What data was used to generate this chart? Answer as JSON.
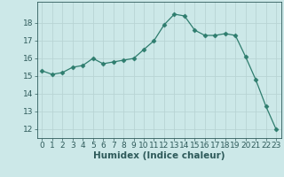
{
  "x": [
    0,
    1,
    2,
    3,
    4,
    5,
    6,
    7,
    8,
    9,
    10,
    11,
    12,
    13,
    14,
    15,
    16,
    17,
    18,
    19,
    20,
    21,
    22,
    23
  ],
  "y": [
    15.3,
    15.1,
    15.2,
    15.5,
    15.6,
    16.0,
    15.7,
    15.8,
    15.9,
    16.0,
    16.5,
    17.0,
    17.9,
    18.5,
    18.4,
    17.6,
    17.3,
    17.3,
    17.4,
    17.3,
    16.1,
    14.8,
    13.3,
    12.0
  ],
  "line_color": "#2e7d6e",
  "marker": "D",
  "marker_size": 2.5,
  "bg_color": "#cce8e8",
  "grid_color": "#b8d4d4",
  "xlabel": "Humidex (Indice chaleur)",
  "xlim": [
    -0.5,
    23.5
  ],
  "ylim": [
    11.5,
    19.2
  ],
  "yticks": [
    12,
    13,
    14,
    15,
    16,
    17,
    18
  ],
  "xticks": [
    0,
    1,
    2,
    3,
    4,
    5,
    6,
    7,
    8,
    9,
    10,
    11,
    12,
    13,
    14,
    15,
    16,
    17,
    18,
    19,
    20,
    21,
    22,
    23
  ],
  "font_color": "#2e5a5a",
  "tick_fontsize": 6.5,
  "label_fontsize": 7.5
}
